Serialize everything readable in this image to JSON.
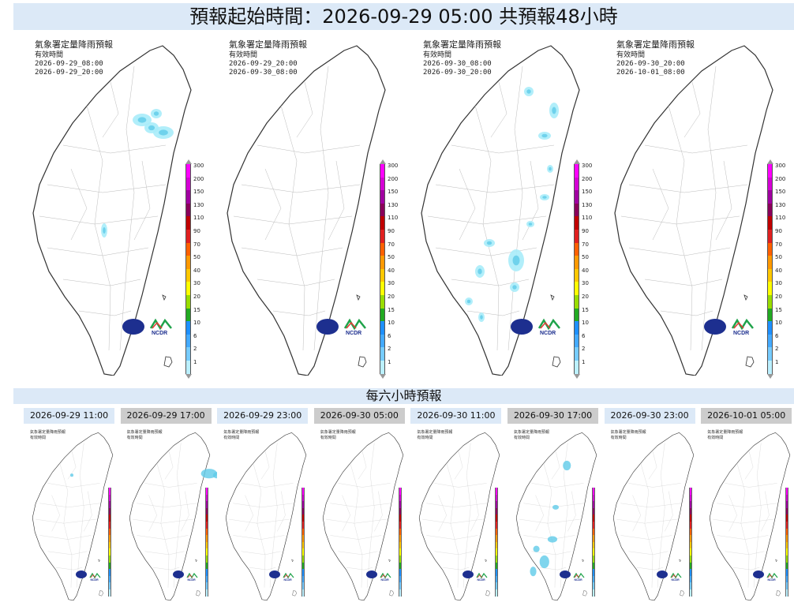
{
  "header": {
    "title": "預報起始時間：2026-09-29 05:00  共預報48小時"
  },
  "section": {
    "six_hour_title": "每六小時預報"
  },
  "panel_labels": {
    "title": "氣象署定量降雨預報",
    "subtitle": "有效時間"
  },
  "big_panels": [
    {
      "line1": "2026-09-29_08:00",
      "line2": "2026-09-29_20:00"
    },
    {
      "line1": "2026-09-29_20:00",
      "line2": "2026-09-30_08:00"
    },
    {
      "line1": "2026-09-30_08:00",
      "line2": "2026-09-30_20:00"
    },
    {
      "line1": "2026-09-30_20:00",
      "line2": "2026-10-01_08:00"
    }
  ],
  "legend": {
    "labels": [
      "300",
      "200",
      "150",
      "130",
      "110",
      "90",
      "70",
      "50",
      "40",
      "30",
      "20",
      "15",
      "10",
      "6",
      "2",
      "1"
    ],
    "colors": [
      "#ff00ff",
      "#d500d5",
      "#a000a0",
      "#8a005a",
      "#c00000",
      "#e02020",
      "#ff6000",
      "#ff9900",
      "#ffc800",
      "#ffff00",
      "#99dd00",
      "#22aa22",
      "#1e90ff",
      "#44aaff",
      "#77ccff",
      "#bbf0ff"
    ]
  },
  "logos": {
    "ncdr_text": "NCDR"
  },
  "tabs": [
    {
      "label": "2026-09-29 11:00",
      "active": true
    },
    {
      "label": "2026-09-29 17:00",
      "active": false
    },
    {
      "label": "2026-09-29 23:00",
      "active": true
    },
    {
      "label": "2026-09-30 05:00",
      "active": false
    },
    {
      "label": "2026-09-30 11:00",
      "active": true
    },
    {
      "label": "2026-09-30 17:00",
      "active": false
    },
    {
      "label": "2026-09-30 23:00",
      "active": true
    },
    {
      "label": "2026-10-01 05:00",
      "active": false
    }
  ],
  "colors": {
    "banner": "#dce9f7",
    "tab_inactive": "#cccccc",
    "rain_light": "#a8ecfa",
    "rain_mid": "#5fcbe8",
    "logo_blue": "#1d2f8f"
  }
}
